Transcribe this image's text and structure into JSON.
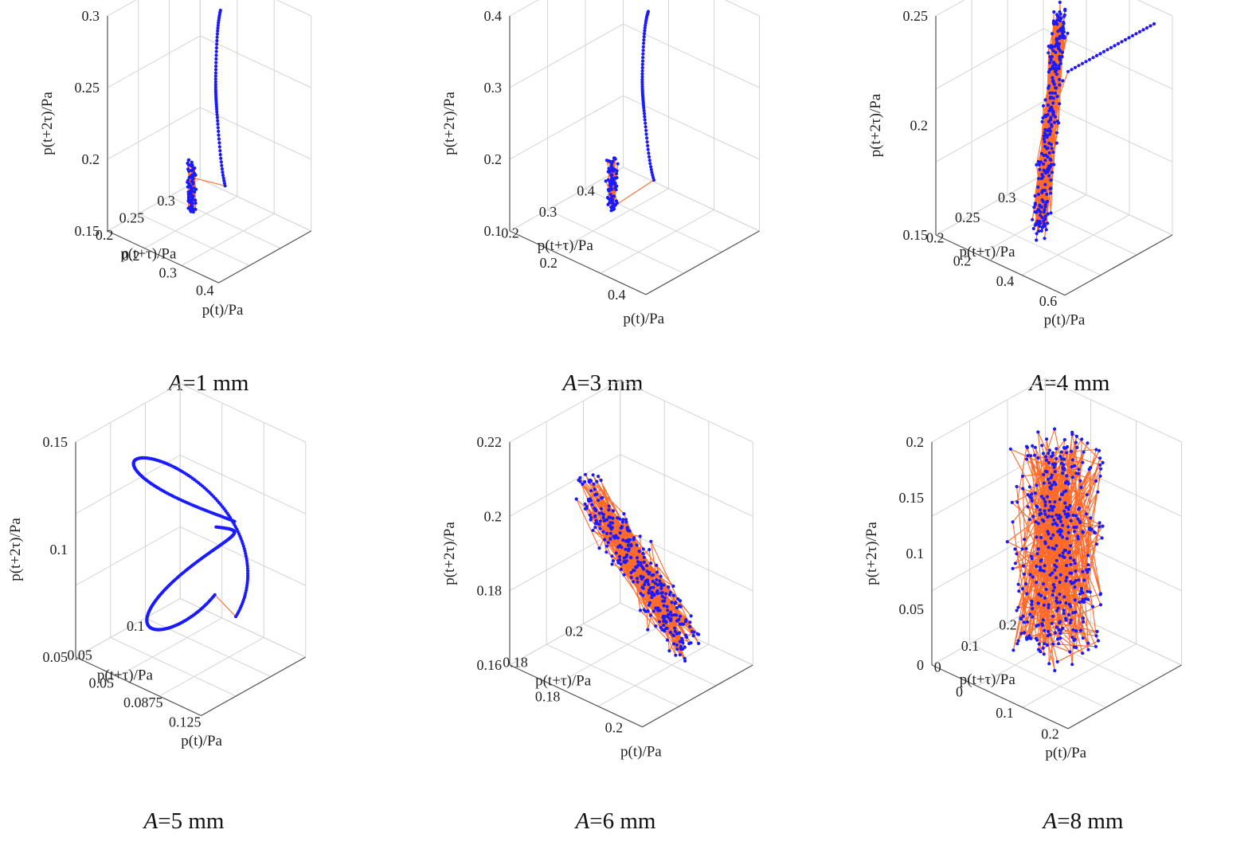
{
  "figure": {
    "description_labels_only": false
  },
  "colors": {
    "marker": "#1a1aff",
    "line": "#ff6a2a",
    "grid": "#d4d4d4",
    "axis": "#555555"
  },
  "chart_data": [
    {
      "type": "scatter",
      "projection": "3d",
      "caption_var": "A",
      "caption_rest": "=1 mm",
      "xlabel": "p(t)/Pa",
      "ylabel": "p(t+τ)/Pa",
      "zlabel": "p(t+2τ)/Pa",
      "x_ticks": [
        "0.2",
        "0.3",
        "0.4"
      ],
      "y_ticks": [
        "0.2",
        "0.25",
        "0.3"
      ],
      "z_ticks": [
        "0.15",
        "0.2",
        "0.25",
        "0.3"
      ],
      "xlim": [
        0.15,
        0.45
      ],
      "ylim": [
        0.18,
        0.32
      ],
      "zlim": [
        0.15,
        0.3
      ],
      "pattern": "descending curve from upper end into dense cluster near z 0.15"
    },
    {
      "type": "scatter",
      "projection": "3d",
      "caption_var": "A",
      "caption_rest": "=3 mm",
      "xlabel": "p(t)/Pa",
      "ylabel": "p(t+τ)/Pa",
      "zlabel": "p(t+2τ)/Pa",
      "x_ticks": [
        "0.2",
        "0.4"
      ],
      "y_ticks": [
        "0.2",
        "0.3",
        "0.4"
      ],
      "z_ticks": [
        "0.1",
        "0.2",
        "0.3",
        "0.4"
      ],
      "xlim": [
        0.12,
        0.55
      ],
      "ylim": [
        0.15,
        0.45
      ],
      "zlim": [
        0.1,
        0.42
      ],
      "pattern": "descending curve ending in small cluster near z 0.1"
    },
    {
      "type": "scatter",
      "projection": "3d",
      "caption_var": "A",
      "caption_rest": "=4 mm",
      "xlabel": "p(t)/Pa",
      "ylabel": "p(t+τ)/Pa",
      "zlabel": "p(t+2τ)/Pa",
      "x_ticks": [
        "0.2",
        "0.4",
        "0.6"
      ],
      "y_ticks": [
        "0.2",
        "0.25",
        "0.3"
      ],
      "z_ticks": [
        "0.15",
        "0.2",
        "0.25"
      ],
      "xlim": [
        0.15,
        0.65
      ],
      "ylim": [
        0.18,
        0.32
      ],
      "zlim": [
        0.15,
        0.25
      ],
      "pattern": "elongated diagonal band with tail to upper right"
    },
    {
      "type": "scatter",
      "projection": "3d",
      "caption_var": "A",
      "caption_rest": "=5 mm",
      "xlabel": "p(t)/Pa",
      "ylabel": "p(t+τ)/Pa",
      "zlabel": "p(t+2τ)/Pa",
      "x_ticks": [
        "0.05",
        "0.0875",
        "0.125"
      ],
      "y_ticks": [
        "0.05",
        "0.1"
      ],
      "z_ticks": [
        "0.05",
        "0.1",
        "0.15"
      ],
      "xlim": [
        0.04,
        0.14
      ],
      "ylim": [
        0.03,
        0.13
      ],
      "zlim": [
        0.03,
        0.15
      ],
      "pattern": "closed double loop attractor"
    },
    {
      "type": "scatter",
      "projection": "3d",
      "caption_var": "A",
      "caption_rest": "=6 mm",
      "xlabel": "p(t)/Pa",
      "ylabel": "p(t+τ)/Pa",
      "zlabel": "p(t+2τ)/Pa",
      "x_ticks": [
        "0.18",
        "0.2"
      ],
      "y_ticks": [
        "0.18",
        "0.2"
      ],
      "z_ticks": [
        "0.16",
        "0.18",
        "0.2",
        "0.22"
      ],
      "xlim": [
        0.16,
        0.215
      ],
      "ylim": [
        0.165,
        0.215
      ],
      "zlim": [
        0.16,
        0.22
      ],
      "pattern": "scattered band descending left to right"
    },
    {
      "type": "scatter",
      "projection": "3d",
      "caption_var": "A",
      "caption_rest": "=8 mm",
      "xlabel": "p(t)/Pa",
      "ylabel": "p(t+τ)/Pa",
      "zlabel": "p(t+2τ)/Pa",
      "x_ticks": [
        "0",
        "0.1",
        "0.2"
      ],
      "y_ticks": [
        "0",
        "0.1",
        "0.2"
      ],
      "z_ticks": [
        "0",
        "0.05",
        "0.1",
        "0.15",
        "0.2"
      ],
      "xlim": [
        -0.02,
        0.25
      ],
      "ylim": [
        -0.02,
        0.25
      ],
      "zlim": [
        0,
        0.22
      ],
      "pattern": "dense vertical cloud filling the cube"
    }
  ]
}
